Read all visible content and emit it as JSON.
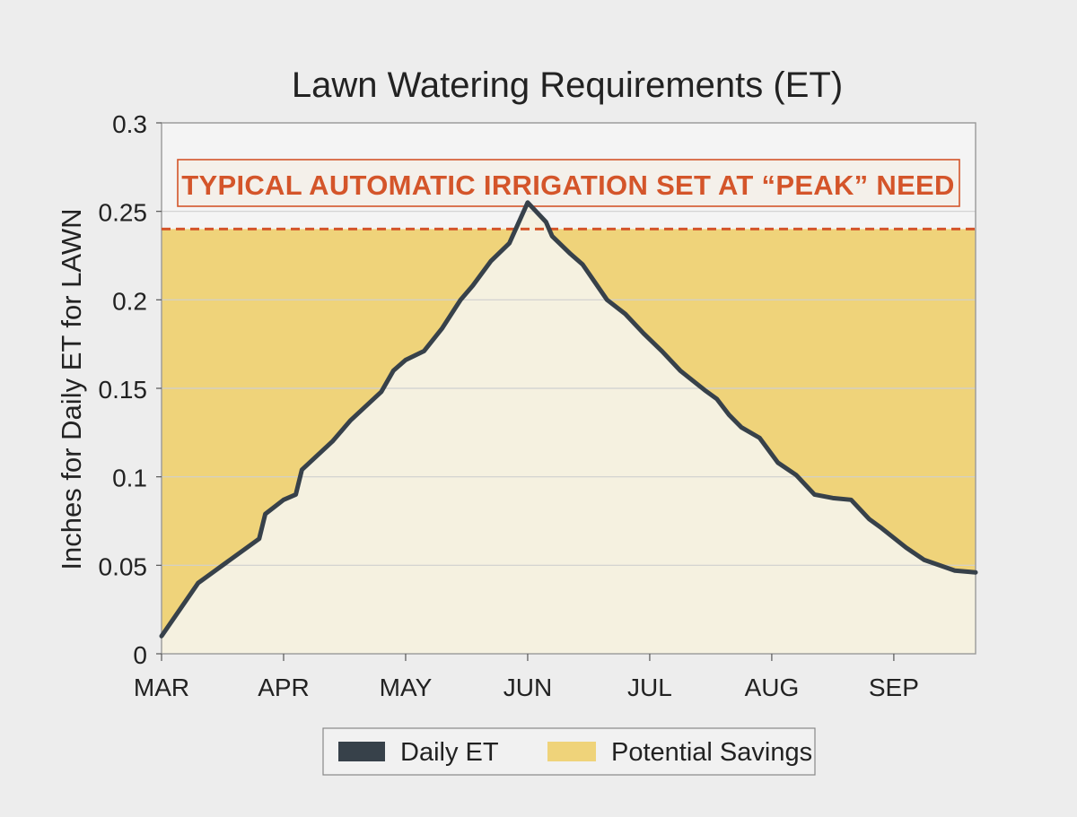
{
  "chart_data": {
    "type": "area",
    "title": "Lawn Watering Requirements (ET)",
    "xlabel": "",
    "ylabel": "Inches for Daily ET for LAWN",
    "categories": [
      "MAR",
      "APR",
      "MAY",
      "JUN",
      "JUL",
      "AUG",
      "SEP"
    ],
    "ylim": [
      0,
      0.3
    ],
    "yticks": [
      0,
      0.05,
      0.1,
      0.15,
      0.2,
      0.25,
      0.3
    ],
    "ytick_labels": [
      "0",
      "0.05",
      "0.1",
      "0.15",
      "0.2",
      "0.25",
      "0.3"
    ],
    "xlim": [
      0,
      6.67
    ],
    "grid": true,
    "series": [
      {
        "name": "Daily ET",
        "color": "#37414a",
        "x": [
          0,
          0.15,
          0.2,
          0.25,
          0.3,
          0.5,
          0.8,
          0.85,
          1.0,
          1.1,
          1.15,
          1.4,
          1.5,
          1.55,
          1.8,
          1.9,
          2.0,
          2.15,
          2.3,
          2.45,
          2.55,
          2.7,
          2.85,
          3.0,
          3.15,
          3.2,
          3.35,
          3.45,
          3.55,
          3.65,
          3.8,
          3.95,
          4.1,
          4.25,
          4.45,
          4.55,
          4.65,
          4.75,
          4.9,
          5.05,
          5.2,
          5.35,
          5.5,
          5.65,
          5.8,
          5.9,
          6.1,
          6.25,
          6.5,
          6.67
        ],
        "values": [
          0.01,
          0.025,
          0.03,
          0.035,
          0.04,
          0.05,
          0.065,
          0.079,
          0.087,
          0.09,
          0.104,
          0.12,
          0.128,
          0.132,
          0.148,
          0.16,
          0.166,
          0.171,
          0.184,
          0.2,
          0.208,
          0.222,
          0.232,
          0.255,
          0.244,
          0.236,
          0.226,
          0.22,
          0.21,
          0.2,
          0.192,
          0.181,
          0.171,
          0.16,
          0.149,
          0.144,
          0.135,
          0.128,
          0.122,
          0.108,
          0.101,
          0.09,
          0.088,
          0.087,
          0.076,
          0.071,
          0.06,
          0.053,
          0.047,
          0.046
        ]
      },
      {
        "name": "Potential Savings",
        "color": "#efd37a"
      }
    ],
    "threshold": {
      "label": "TYPICAL AUTOMATIC IRRIGATION SET AT “PEAK” NEED",
      "value": 0.24,
      "color": "#d4552a"
    },
    "legend": {
      "placement": "bottom-center",
      "items": [
        "Daily ET",
        "Potential Savings"
      ]
    },
    "colors": {
      "area_under": "#f5f1e0",
      "savings_fill": "#efd37a",
      "grid": "#cfcfcf",
      "frame": "#9a9a9a"
    }
  }
}
